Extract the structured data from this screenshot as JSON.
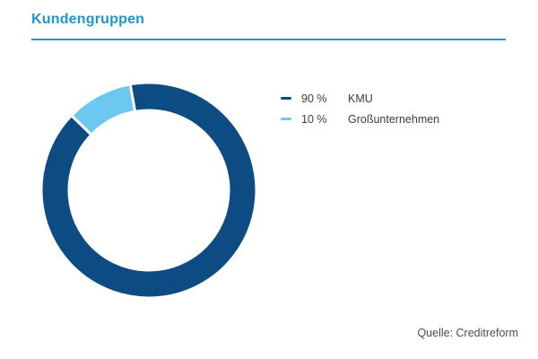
{
  "header": {
    "title": "Kundengruppen"
  },
  "source": {
    "label": "Quelle: Creditreform"
  },
  "colors": {
    "title_text": "#1e96d2",
    "title_rule": "#2796d0",
    "kmu": "#0d4c82",
    "grossunternehmen": "#6dc8f1"
  },
  "chart_data": {
    "type": "pie",
    "subtype": "donut",
    "title": "Kundengruppen",
    "categories": [
      "KMU",
      "Großunternehmen"
    ],
    "values": [
      90,
      10
    ],
    "value_labels": [
      "90 %",
      "10 %"
    ],
    "colors": [
      "#0d4c82",
      "#6dc8f1"
    ],
    "unit": "%",
    "start_angle_deg": -10,
    "direction": "clockwise",
    "inner_radius_ratio": 0.74,
    "slice_gap_color": "#ffffff",
    "legend_position": "right",
    "source": "Quelle: Creditreform"
  }
}
